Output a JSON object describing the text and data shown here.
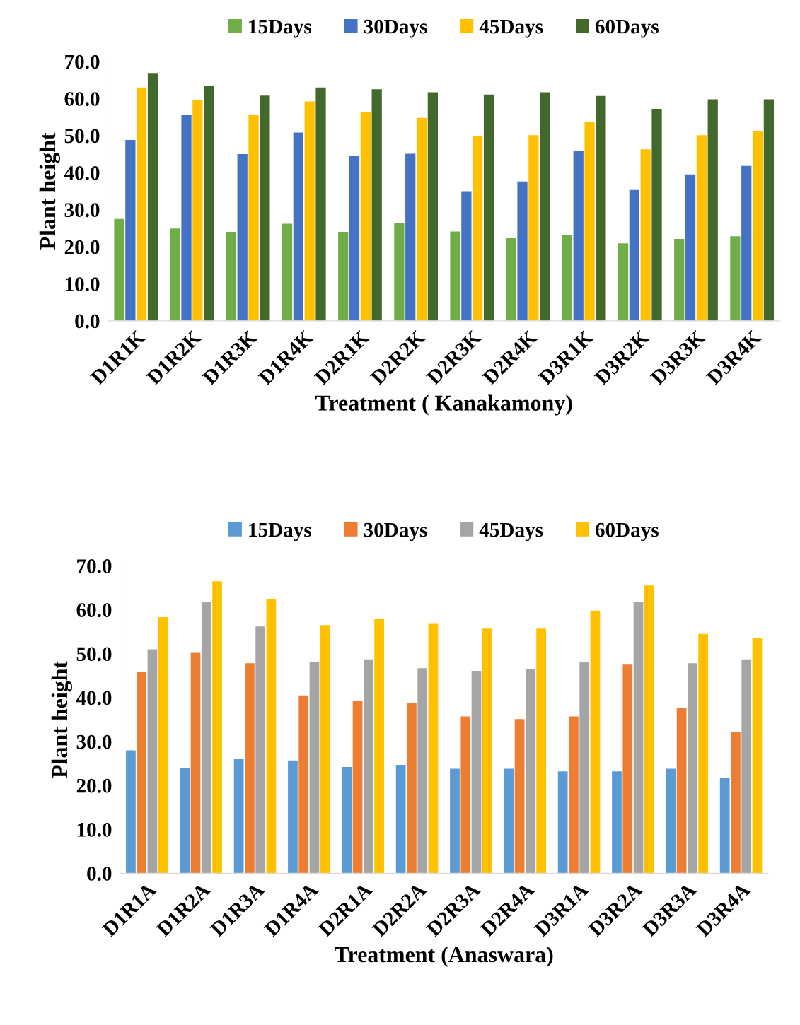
{
  "chart_data": [
    {
      "type": "bar",
      "xlabel": "Treatment ( Kanakamony)",
      "ylabel": "Plant height",
      "categories": [
        "D1R1K",
        "D1R2K",
        "D1R3K",
        "D1R4K",
        "D2R1K",
        "D2R2K",
        "D2R3K",
        "D2R4K",
        "D3R1K",
        "D3R2K",
        "D3R3K",
        "D3R4K"
      ],
      "series": [
        {
          "name": "15Days",
          "color": "#70ad47",
          "values": [
            27.5,
            24.9,
            24.0,
            26.2,
            24.0,
            26.4,
            24.1,
            22.5,
            23.2,
            20.9,
            22.1,
            22.8
          ]
        },
        {
          "name": "30Days",
          "color": "#4472c4",
          "values": [
            48.8,
            55.6,
            45.0,
            50.8,
            44.6,
            45.1,
            35.0,
            37.6,
            45.9,
            35.3,
            39.5,
            41.8
          ]
        },
        {
          "name": "45Days",
          "color": "#ffc000",
          "values": [
            63.0,
            59.5,
            55.6,
            59.2,
            56.3,
            54.8,
            49.8,
            50.1,
            53.6,
            46.3,
            50.1,
            51.1
          ]
        },
        {
          "name": "60Days",
          "color": "#43682b",
          "values": [
            66.9,
            63.4,
            60.8,
            63.0,
            62.5,
            61.7,
            61.1,
            61.7,
            60.7,
            57.2,
            59.8,
            59.8
          ]
        }
      ],
      "ylim": [
        0,
        70
      ],
      "yticks": [
        {
          "value": 0,
          "label": "0.0"
        },
        {
          "value": 10,
          "label": "10.0"
        },
        {
          "value": 20,
          "label": "20.0"
        },
        {
          "value": 30,
          "label": "30.0"
        },
        {
          "value": 40,
          "label": "40.0"
        },
        {
          "value": 50,
          "label": "50.0"
        },
        {
          "value": 60,
          "label": "60.0"
        },
        {
          "value": 70,
          "label": "70.0"
        }
      ],
      "grid": false,
      "legend": "top"
    },
    {
      "type": "bar",
      "xlabel": "Treatment (Anaswara)",
      "ylabel": "Plant height",
      "categories": [
        "D1R1A",
        "D1R2A",
        "D1R3A",
        "D1R4A",
        "D2R1A",
        "D2R2A",
        "D2R3A",
        "D2R4A",
        "D3R1A",
        "D3R2A",
        "D3R3A",
        "D3R4A"
      ],
      "series": [
        {
          "name": "15Days",
          "color": "#5b9bd5",
          "values": [
            28.0,
            23.9,
            26.0,
            25.7,
            24.2,
            24.7,
            23.8,
            23.8,
            23.2,
            23.2,
            23.8,
            21.8
          ]
        },
        {
          "name": "30Days",
          "color": "#ed7d31",
          "values": [
            45.8,
            50.2,
            47.8,
            40.5,
            39.3,
            38.8,
            35.7,
            35.1,
            35.7,
            47.5,
            37.7,
            32.2
          ]
        },
        {
          "name": "45Days",
          "color": "#a5a5a5",
          "values": [
            51.0,
            61.8,
            56.2,
            48.1,
            48.7,
            46.7,
            46.1,
            46.4,
            48.1,
            61.8,
            47.8,
            48.7
          ]
        },
        {
          "name": "60Days",
          "color": "#ffc000",
          "values": [
            58.3,
            66.5,
            62.4,
            56.5,
            58.0,
            56.8,
            55.7,
            55.7,
            59.8,
            65.5,
            54.5,
            53.6
          ]
        }
      ],
      "ylim": [
        0,
        70
      ],
      "yticks": [
        {
          "value": 0,
          "label": "0.0"
        },
        {
          "value": 10,
          "label": "10.0"
        },
        {
          "value": 20,
          "label": "20.0"
        },
        {
          "value": 30,
          "label": "30.0"
        },
        {
          "value": 40,
          "label": "40.0"
        },
        {
          "value": 50,
          "label": "50.0"
        },
        {
          "value": 60,
          "label": "60.0"
        },
        {
          "value": 70,
          "label": "70.0"
        }
      ],
      "grid": false,
      "legend": "top"
    }
  ]
}
